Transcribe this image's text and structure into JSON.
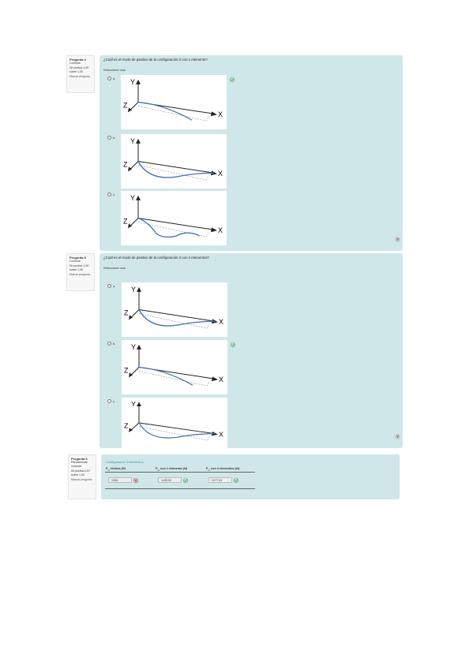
{
  "questions": [
    {
      "number": "Pregunta 4",
      "state": "Correcta",
      "grade": "Se puntúa 1,00 sobre 1,00",
      "flag": "Marcar pregunta",
      "text": "¿Cuál es el modo de pandeo de la configuración 2 con 1 elemento?",
      "prompt": "Seleccione una:",
      "options": [
        "a.",
        "b.",
        "c."
      ]
    },
    {
      "number": "Pregunta 5",
      "state": "Correcta",
      "grade": "Se puntúa 1,00 sobre 1,00",
      "flag": "Marcar pregunta",
      "text": "¿Cuál es el modo de pandeo de la configuración 3 con 4 elementos?",
      "prompt": "Seleccione una:",
      "options": [
        "a.",
        "b.",
        "c."
      ]
    },
    {
      "number": "Pregunta 6",
      "state": "Parcialmente correcta",
      "grade": "Se puntúa 0,67 sobre 1,00",
      "flag": "Marcar pregunta"
    }
  ],
  "axes": {
    "y": "Y",
    "z": "Z",
    "x": "X"
  },
  "help": "?",
  "table": {
    "title": "Configuración 3 elementos",
    "headers": [
      {
        "symbol": "P",
        "sub": "cr",
        "rest": " teórica (N)"
      },
      {
        "symbol": "P",
        "sub": "cr",
        "rest": " con 1 elemento (N)"
      },
      {
        "symbol": "P",
        "sub": "cr",
        "rest": " con 4 elementos (N)"
      }
    ],
    "values": [
      "1308",
      "1405,53",
      "1277,03"
    ]
  }
}
